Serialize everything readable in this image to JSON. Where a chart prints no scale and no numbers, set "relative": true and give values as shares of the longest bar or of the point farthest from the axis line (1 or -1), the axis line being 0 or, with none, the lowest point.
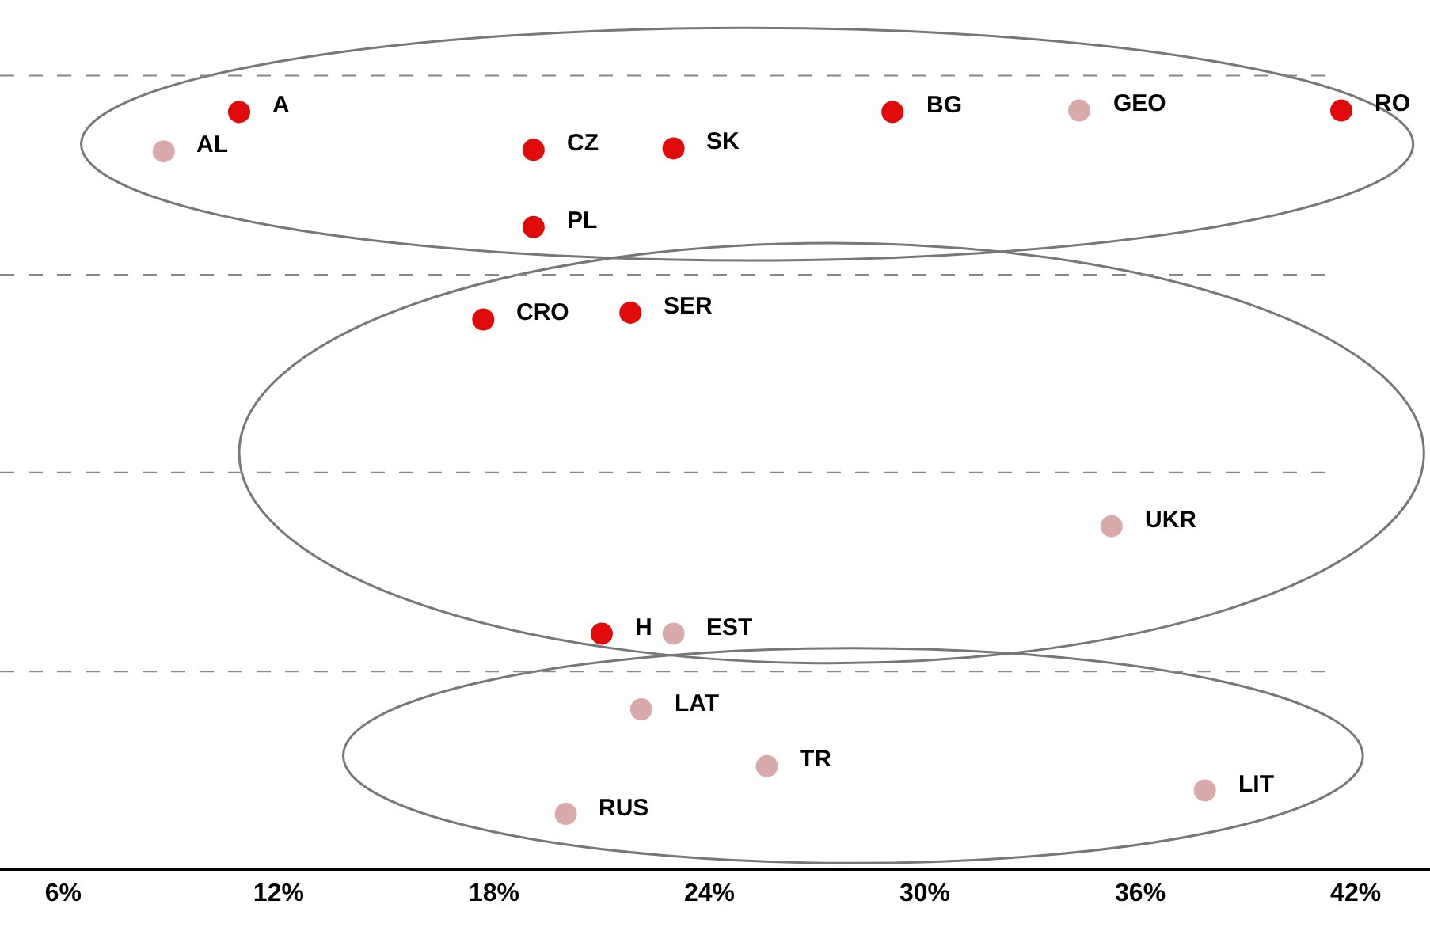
{
  "chart_data": {
    "type": "scatter",
    "relative": true,
    "marker": "circle",
    "grid": false,
    "legend": false,
    "x": [
      10.9,
      8.8,
      19.1,
      23.0,
      29.1,
      34.3,
      41.6,
      19.1,
      17.7,
      21.8,
      35.2,
      21.0,
      23.0,
      22.1,
      25.6,
      37.8,
      20.0
    ],
    "values": [
      0.998,
      0.946,
      0.948,
      0.95,
      0.998,
      1.0,
      1.0,
      0.846,
      0.724,
      0.733,
      0.451,
      0.309,
      0.309,
      0.209,
      0.134,
      0.102,
      0.071
    ],
    "colors": [
      "#e00a0a",
      "#d9aaaa",
      "#e00a0a",
      "#e00a0a",
      "#e00a0a",
      "#d9aaaa",
      "#e00a0a",
      "#e00a0a",
      "#e00a0a",
      "#e00a0a",
      "#d9aaaa",
      "#e00a0a",
      "#d9aaaa",
      "#d9aaaa",
      "#d9aaaa",
      "#d9aaaa",
      "#d9aaaa"
    ],
    "annotations": [
      {
        "text": "A",
        "x": 10.9,
        "y": 0.998
      },
      {
        "text": "AL",
        "x": 8.8,
        "y": 0.946
      },
      {
        "text": "CZ",
        "x": 19.1,
        "y": 0.948
      },
      {
        "text": "SK",
        "x": 23.0,
        "y": 0.95
      },
      {
        "text": "BG",
        "x": 29.1,
        "y": 0.998
      },
      {
        "text": "GEO",
        "x": 34.3,
        "y": 1.0
      },
      {
        "text": "RO",
        "x": 41.6,
        "y": 1.0
      },
      {
        "text": "PL",
        "x": 19.1,
        "y": 0.846
      },
      {
        "text": "CRO",
        "x": 17.7,
        "y": 0.724
      },
      {
        "text": "SER",
        "x": 21.8,
        "y": 0.733
      },
      {
        "text": "UKR",
        "x": 35.2,
        "y": 0.451
      },
      {
        "text": "H",
        "x": 21.0,
        "y": 0.309
      },
      {
        "text": "EST",
        "x": 23.0,
        "y": 0.309
      },
      {
        "text": "LAT",
        "x": 22.1,
        "y": 0.209
      },
      {
        "text": "TR",
        "x": 25.6,
        "y": 0.134
      },
      {
        "text": "LIT",
        "x": 37.8,
        "y": 0.102
      },
      {
        "text": "RUS",
        "x": 20.0,
        "y": 0.071
      }
    ],
    "xlim": [
      4.24,
      44.07
    ],
    "xticks": [
      {
        "value": 6,
        "label": "6%"
      },
      {
        "value": 12,
        "label": "12%"
      },
      {
        "value": 18,
        "label": "18%"
      },
      {
        "value": 24,
        "label": "24%"
      },
      {
        "value": 30,
        "label": "30%"
      },
      {
        "value": 36,
        "label": "36%"
      },
      {
        "value": 42,
        "label": "42%"
      }
    ],
    "ref_lines": [
      {
        "axis": "y",
        "value": 1.046,
        "color": "#888888",
        "line_style": "dashed"
      },
      {
        "axis": "y",
        "value": 0.783,
        "color": "#888888",
        "line_style": "dashed"
      },
      {
        "axis": "y",
        "value": 0.522,
        "color": "#888888",
        "line_style": "dashed"
      },
      {
        "axis": "y",
        "value": 0.259,
        "color": "#888888",
        "line_style": "dashed"
      }
    ]
  }
}
